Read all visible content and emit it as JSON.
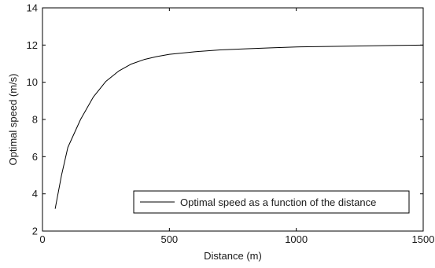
{
  "chart_data": {
    "type": "line",
    "title": "",
    "xlabel": "Distance (m)",
    "ylabel": "Optimal speed (m/s)",
    "xlim": [
      0,
      1500
    ],
    "ylim": [
      2,
      14
    ],
    "xticks": [
      0,
      500,
      1000,
      1500
    ],
    "yticks": [
      2,
      4,
      6,
      8,
      10,
      12,
      14
    ],
    "grid": false,
    "legend_position": "bottom-right",
    "series": [
      {
        "name": "Optimal speed as a function of the distance",
        "color": "#000000",
        "x": [
          50,
          75,
          100,
          150,
          200,
          250,
          300,
          350,
          400,
          450,
          500,
          600,
          700,
          800,
          900,
          1000,
          1100,
          1200,
          1300,
          1400,
          1500
        ],
        "y": [
          3.2,
          5.0,
          6.5,
          8.0,
          9.2,
          10.05,
          10.6,
          10.98,
          11.22,
          11.38,
          11.5,
          11.64,
          11.74,
          11.8,
          11.85,
          11.9,
          11.92,
          11.94,
          11.96,
          11.98,
          12.0
        ]
      }
    ]
  }
}
